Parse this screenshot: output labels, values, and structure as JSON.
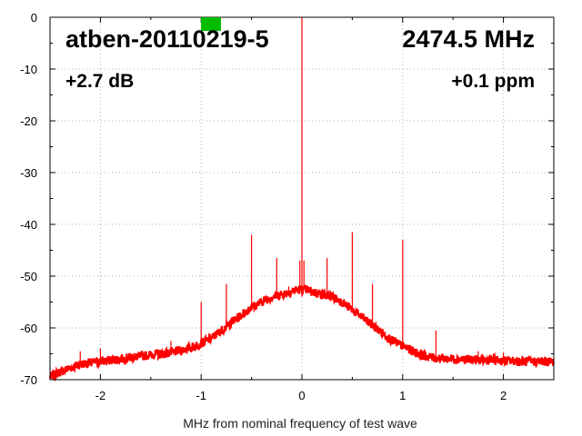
{
  "chart_data": {
    "type": "line",
    "xlabel": "MHz from nominal frequency of test wave",
    "ylabel": "",
    "xlim": [
      -2.5,
      2.5
    ],
    "ylim": [
      -70,
      0
    ],
    "x_ticks": [
      -2,
      -1,
      0,
      1,
      2
    ],
    "y_ticks": [
      0,
      -10,
      -20,
      -30,
      -40,
      -50,
      -60,
      -70
    ],
    "grid": true,
    "annotations": {
      "device": "atben-20110219-5",
      "frequency": "2474.5 MHz",
      "gain": "+2.7 dB",
      "offset": "+0.1 ppm"
    },
    "indicator_color": "#00bb00",
    "line_color": "#ff0000",
    "series": [
      {
        "x": [
          -2.5,
          -2.4,
          -2.2,
          -2.0,
          -1.8,
          -1.5,
          -1.3,
          -1.1,
          -1.0,
          -0.9,
          -0.8,
          -0.7,
          -0.6,
          -0.5,
          -0.4,
          -0.3,
          -0.2,
          -0.1,
          -0.05,
          0.05,
          0.1,
          0.2,
          0.3,
          0.4,
          0.5,
          0.6,
          0.7,
          0.8,
          0.9,
          1.0,
          1.1,
          1.2,
          1.3,
          1.5,
          1.8,
          2.0,
          2.2,
          2.5
        ],
        "values": [
          -69.5,
          -68.5,
          -67.0,
          -66.5,
          -66.0,
          -65.2,
          -64.8,
          -63.8,
          -63.0,
          -62.0,
          -60.5,
          -59.0,
          -57.5,
          -56.0,
          -55.0,
          -54.0,
          -53.5,
          -53.0,
          -52.6,
          -52.6,
          -53.0,
          -53.5,
          -54.0,
          -55.0,
          -56.5,
          -58.0,
          -59.5,
          -61.0,
          -62.5,
          -63.5,
          -64.5,
          -65.3,
          -65.8,
          -66.0,
          -66.2,
          -66.3,
          -66.5,
          -66.5
        ]
      }
    ],
    "spurs": [
      {
        "x": -2.2,
        "values": -64.5
      },
      {
        "x": -2.0,
        "values": -64.0
      },
      {
        "x": -1.3,
        "values": -62.5
      },
      {
        "x": -1.0,
        "values": -55.0
      },
      {
        "x": -0.75,
        "values": -51.5
      },
      {
        "x": -0.7,
        "values": -58.0
      },
      {
        "x": -0.5,
        "values": -42.0
      },
      {
        "x": -0.25,
        "values": -46.5
      },
      {
        "x": -0.13,
        "values": -52.0
      },
      {
        "x": -0.02,
        "values": -47.0
      },
      {
        "x": 0.0,
        "values": 0.0
      },
      {
        "x": 0.02,
        "values": -47.0
      },
      {
        "x": 0.25,
        "values": -46.5
      },
      {
        "x": 0.5,
        "values": -41.5
      },
      {
        "x": 0.7,
        "values": -51.5
      },
      {
        "x": 1.0,
        "values": -43.0
      },
      {
        "x": 1.33,
        "values": -60.5
      },
      {
        "x": 1.75,
        "values": -64.5
      },
      {
        "x": 2.0,
        "values": -64.8
      }
    ]
  }
}
